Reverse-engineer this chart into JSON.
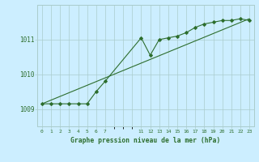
{
  "title": "Graphe pression niveau de la mer (hPa)",
  "bg_color": "#cceeff",
  "grid_color": "#aacccc",
  "line_color": "#2d6e2d",
  "xlim": [
    -0.5,
    23.5
  ],
  "ylim": [
    1008.5,
    1012.0
  ],
  "yticks": [
    1009,
    1010,
    1011
  ],
  "xtick_positions": [
    0,
    1,
    2,
    3,
    4,
    5,
    6,
    7,
    11,
    12,
    13,
    14,
    15,
    16,
    17,
    18,
    19,
    20,
    21,
    22,
    23
  ],
  "xtick_labels": [
    "0",
    "1",
    "2",
    "3",
    "4",
    "5",
    "6",
    "7",
    "11",
    "12",
    "13",
    "14",
    "15",
    "16",
    "17",
    "18",
    "19",
    "20",
    "21",
    "22",
    "23"
  ],
  "data_x": [
    0,
    1,
    2,
    3,
    4,
    5,
    6,
    7,
    11,
    12,
    13,
    14,
    15,
    16,
    17,
    18,
    19,
    20,
    21,
    22,
    23
  ],
  "data_y": [
    1009.15,
    1009.15,
    1009.15,
    1009.15,
    1009.15,
    1009.15,
    1009.5,
    1009.8,
    1011.05,
    1010.55,
    1011.0,
    1011.05,
    1011.1,
    1011.2,
    1011.35,
    1011.45,
    1011.5,
    1011.55,
    1011.55,
    1011.6,
    1011.55
  ],
  "trend_x": [
    0,
    23
  ],
  "trend_y": [
    1009.15,
    1011.6
  ]
}
